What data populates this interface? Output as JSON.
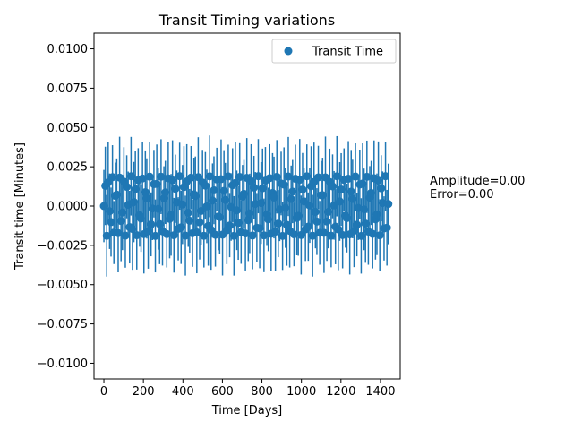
{
  "chart_data": {
    "type": "scatter",
    "title": "Transit Timing variations",
    "xlabel": "Time [Days]",
    "ylabel": "Transit time [Minutes]",
    "xlim": [
      -50,
      1500
    ],
    "ylim": [
      -0.011,
      0.011
    ],
    "x_ticks": [
      0,
      200,
      400,
      600,
      800,
      1000,
      1200,
      1400
    ],
    "x_tick_labels": [
      "0",
      "200",
      "400",
      "600",
      "800",
      "1000",
      "1200",
      "1400"
    ],
    "y_ticks": [
      0.01,
      0.0075,
      0.005,
      0.0025,
      0.0,
      -0.0025,
      -0.005,
      -0.0075,
      -0.01
    ],
    "y_tick_labels": [
      "0.0100",
      "0.0075",
      "0.0050",
      "0.0025",
      "0.0000",
      "−0.0025",
      "−0.0050",
      "−0.0075",
      "−0.0100"
    ],
    "grid": false,
    "legend_position": "top-right",
    "series": [
      {
        "name": "Transit Time",
        "color": "#1f77b4",
        "marker": "circle",
        "x_range": [
          0,
          1440
        ],
        "points": 200,
        "y_amplitude_range": [
          -0.0019,
          0.0019
        ],
        "error_bar_extent": [
          -0.0042,
          0.0042
        ]
      }
    ]
  },
  "annotation": {
    "amplitude": "Amplitude=0.00",
    "error": "Error=0.00"
  }
}
